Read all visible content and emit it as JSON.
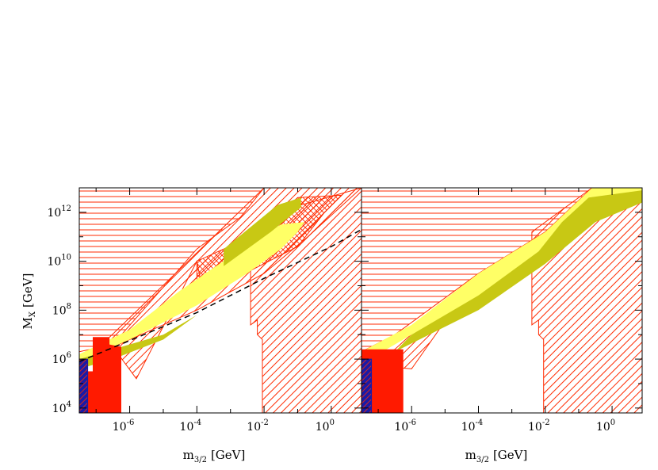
{
  "chart_data": [
    {
      "type": "area",
      "panel": "left",
      "title": "",
      "xlabel": {
        "main": "m",
        "sub": "3/2",
        "unit": "[GeV]"
      },
      "ylabel": {
        "main": "M",
        "sub": "X",
        "unit": "[GeV]"
      },
      "x_scale": "log",
      "y_scale": "log",
      "xlim_log10": [
        -7.5,
        0.9
      ],
      "ylim_log10": [
        3.8,
        13.0
      ],
      "x_ticks": [
        {
          "base": "10",
          "exp": "-6",
          "log10": -6
        },
        {
          "base": "10",
          "exp": "-4",
          "log10": -4
        },
        {
          "base": "10",
          "exp": "-2",
          "log10": -2
        },
        {
          "base": "10",
          "exp": "0",
          "log10": 0
        }
      ],
      "y_ticks": [
        {
          "base": "10",
          "exp": "4",
          "log10": 4
        },
        {
          "base": "10",
          "exp": "6",
          "log10": 6
        },
        {
          "base": "10",
          "exp": "8",
          "log10": 8
        },
        {
          "base": "10",
          "exp": "10",
          "log10": 10
        },
        {
          "base": "10",
          "exp": "12",
          "log10": 12
        }
      ],
      "regions": [
        {
          "name": "horizontal-hatch-excluded",
          "fill": "hatch-horizontal",
          "color": "#ff2a00",
          "points_log10": [
            [
              -7.5,
              13.0
            ],
            [
              -7.5,
              6.3
            ],
            [
              -6.5,
              6.6
            ],
            [
              -4.0,
              10.5
            ],
            [
              -2.7,
              11.8
            ],
            [
              -2.0,
              13.0
            ]
          ]
        },
        {
          "name": "diagonal-hatch-upper-band",
          "fill": "hatch-diagonal",
          "color": "#ff2a00",
          "points_log10": [
            [
              -7.5,
              5.7
            ],
            [
              -2.0,
              13.0
            ],
            [
              0.9,
              13.0
            ],
            [
              -0.7,
              11.0
            ],
            [
              -2.0,
              9.5
            ],
            [
              -4.0,
              8.0
            ],
            [
              -6.5,
              6.5
            ],
            [
              -7.5,
              5.9
            ]
          ]
        },
        {
          "name": "crosshatch-region",
          "fill": "hatch-cross",
          "color": "#ff2a00",
          "points_log10": [
            [
              -4.0,
              10.0
            ],
            [
              -2.4,
              11.0
            ],
            [
              -1.5,
              12.0
            ],
            [
              -1.0,
              12.6
            ],
            [
              0.3,
              12.7
            ],
            [
              -0.2,
              12.0
            ],
            [
              -1.0,
              10.6
            ],
            [
              -2.0,
              9.9
            ],
            [
              -3.0,
              9.2
            ],
            [
              -4.0,
              8.6
            ]
          ]
        },
        {
          "name": "diagonal-hatch-steep-triangle",
          "fill": "hatch-diagonal",
          "color": "#ff2a00",
          "points_log10": [
            [
              -6.5,
              6.5
            ],
            [
              -3.8,
              8.6
            ],
            [
              -4.0,
              10.0
            ],
            [
              -5.8,
              5.2
            ]
          ]
        },
        {
          "name": "diagonal-hatch-right-block",
          "fill": "hatch-diagonal",
          "color": "#ff2a00",
          "points_log10": [
            [
              -2.4,
              7.4
            ],
            [
              -2.4,
              11.0
            ],
            [
              -0.9,
              12.3
            ],
            [
              0.9,
              13.0
            ],
            [
              0.9,
              3.8
            ],
            [
              -2.05,
              3.8
            ],
            [
              -2.05,
              6.8
            ],
            [
              -2.2,
              7.0
            ],
            [
              -2.2,
              7.6
            ],
            [
              -2.3,
              7.5
            ]
          ]
        },
        {
          "name": "yellow-allowed-band",
          "fill": "solid",
          "color": "#ffff66",
          "points_log10": [
            [
              -7.5,
              5.9
            ],
            [
              -6.0,
              6.8
            ],
            [
              -4.0,
              8.2
            ],
            [
              -2.5,
              9.5
            ],
            [
              -1.5,
              10.5
            ],
            [
              -1.0,
              11.2
            ],
            [
              -0.8,
              11.6
            ],
            [
              -1.5,
              11.5
            ],
            [
              -3.0,
              10.2
            ],
            [
              -4.5,
              8.8
            ],
            [
              -6.0,
              7.2
            ],
            [
              -7.5,
              6.2
            ]
          ]
        },
        {
          "name": "olive-allowed-band",
          "fill": "solid",
          "color": "#c8c814",
          "points_log10": [
            [
              -7.5,
              5.6
            ],
            [
              -6.5,
              6.0
            ],
            [
              -5.0,
              6.8
            ],
            [
              -4.0,
              7.8
            ],
            [
              -5.0,
              7.0
            ],
            [
              -6.5,
              6.4
            ],
            [
              -7.5,
              6.0
            ]
          ]
        },
        {
          "name": "olive-upper-patch",
          "fill": "solid",
          "color": "#c8c814",
          "points_log10": [
            [
              -3.2,
              9.8
            ],
            [
              -1.8,
              11.2
            ],
            [
              -0.9,
              12.2
            ],
            [
              -0.9,
              12.6
            ],
            [
              -1.6,
              12.3
            ],
            [
              -3.2,
              10.5
            ]
          ]
        },
        {
          "name": "red-excluded-region",
          "fill": "solid",
          "color": "#ff1a00",
          "points_log10": [
            [
              -7.5,
              3.8
            ],
            [
              -6.25,
              3.8
            ],
            [
              -6.25,
              6.5
            ],
            [
              -6.6,
              6.6
            ],
            [
              -6.6,
              6.9
            ],
            [
              -7.1,
              6.9
            ],
            [
              -7.1,
              5.5
            ],
            [
              -7.5,
              5.5
            ]
          ]
        },
        {
          "name": "blue-hatched-region",
          "fill": "hatch-blue",
          "color": "#1a1aa6",
          "points_log10": [
            [
              -7.5,
              3.8
            ],
            [
              -7.25,
              3.8
            ],
            [
              -7.25,
              6.0
            ],
            [
              -7.5,
              6.0
            ]
          ]
        }
      ],
      "lines": [
        {
          "name": "dashed-boundary",
          "style": "dashed",
          "color": "#000000",
          "points_log10": [
            [
              -7.5,
              5.9
            ],
            [
              -4.0,
              7.9
            ],
            [
              -2.0,
              9.3
            ],
            [
              0.0,
              10.6
            ],
            [
              0.9,
              11.3
            ]
          ]
        }
      ]
    },
    {
      "type": "area",
      "panel": "right",
      "title": "",
      "xlabel": {
        "main": "m",
        "sub": "3/2",
        "unit": "[GeV]"
      },
      "ylabel": {
        "main": "",
        "sub": "",
        "unit": ""
      },
      "x_scale": "log",
      "y_scale": "log",
      "xlim_log10": [
        -7.5,
        0.9
      ],
      "ylim_log10": [
        3.8,
        13.0
      ],
      "x_ticks": [
        {
          "base": "10",
          "exp": "-6",
          "log10": -6
        },
        {
          "base": "10",
          "exp": "-4",
          "log10": -4
        },
        {
          "base": "10",
          "exp": "-2",
          "log10": -2
        },
        {
          "base": "10",
          "exp": "0",
          "log10": 0
        }
      ],
      "y_ticks": [],
      "regions": [
        {
          "name": "horizontal-hatch-excluded",
          "fill": "hatch-horizontal",
          "color": "#ff2a00",
          "points_log10": [
            [
              -7.5,
              13.0
            ],
            [
              -7.5,
              6.3
            ],
            [
              -6.5,
              7.0
            ],
            [
              -4.0,
              9.5
            ],
            [
              -2.0,
              11.2
            ],
            [
              -0.6,
              13.0
            ]
          ]
        },
        {
          "name": "diagonal-hatch-lower-triangle",
          "fill": "hatch-diagonal",
          "color": "#ff2a00",
          "points_log10": [
            [
              -7.5,
              5.8
            ],
            [
              -6.5,
              6.4
            ],
            [
              -4.0,
              9.5
            ],
            [
              -6.0,
              5.6
            ]
          ]
        },
        {
          "name": "diagonal-hatch-right-block",
          "fill": "hatch-diagonal",
          "color": "#ff2a00",
          "points_log10": [
            [
              -2.4,
              7.4
            ],
            [
              -2.4,
              11.2
            ],
            [
              -0.6,
              13.0
            ],
            [
              0.9,
              13.0
            ],
            [
              0.9,
              3.8
            ],
            [
              -2.05,
              3.8
            ],
            [
              -2.05,
              6.8
            ],
            [
              -2.2,
              7.0
            ],
            [
              -2.2,
              7.6
            ],
            [
              -2.3,
              7.5
            ]
          ]
        },
        {
          "name": "yellow-allowed-band",
          "fill": "solid",
          "color": "#ffff66",
          "points_log10": [
            [
              -7.5,
              6.3
            ],
            [
              -6.0,
              7.4
            ],
            [
              -4.0,
              9.5
            ],
            [
              -2.0,
              11.2
            ],
            [
              -0.6,
              13.0
            ],
            [
              0.9,
              13.0
            ],
            [
              0.9,
              12.4
            ],
            [
              -0.5,
              12.0
            ],
            [
              -2.0,
              10.5
            ],
            [
              -4.0,
              8.5
            ],
            [
              -6.0,
              7.0
            ],
            [
              -7.5,
              5.8
            ]
          ]
        },
        {
          "name": "olive-allowed-band",
          "fill": "solid",
          "color": "#c8c814",
          "points_log10": [
            [
              -6.5,
              6.3
            ],
            [
              -4.0,
              8.0
            ],
            [
              -2.0,
              9.9
            ],
            [
              -0.5,
              11.6
            ],
            [
              0.9,
              12.4
            ],
            [
              0.9,
              12.9
            ],
            [
              -0.7,
              12.6
            ],
            [
              -1.5,
              11.6
            ],
            [
              -2.2,
              10.4
            ],
            [
              -4.0,
              8.6
            ],
            [
              -6.0,
              7.0
            ]
          ]
        },
        {
          "name": "red-excluded-region",
          "fill": "solid",
          "color": "#ff1a00",
          "points_log10": [
            [
              -7.5,
              3.8
            ],
            [
              -6.25,
              3.8
            ],
            [
              -6.25,
              6.4
            ],
            [
              -7.5,
              6.4
            ]
          ]
        },
        {
          "name": "blue-hatched-region",
          "fill": "hatch-blue",
          "color": "#1a1aa6",
          "points_log10": [
            [
              -7.5,
              3.8
            ],
            [
              -7.2,
              3.8
            ],
            [
              -7.2,
              6.0
            ],
            [
              -7.5,
              6.0
            ]
          ]
        }
      ],
      "lines": []
    }
  ]
}
